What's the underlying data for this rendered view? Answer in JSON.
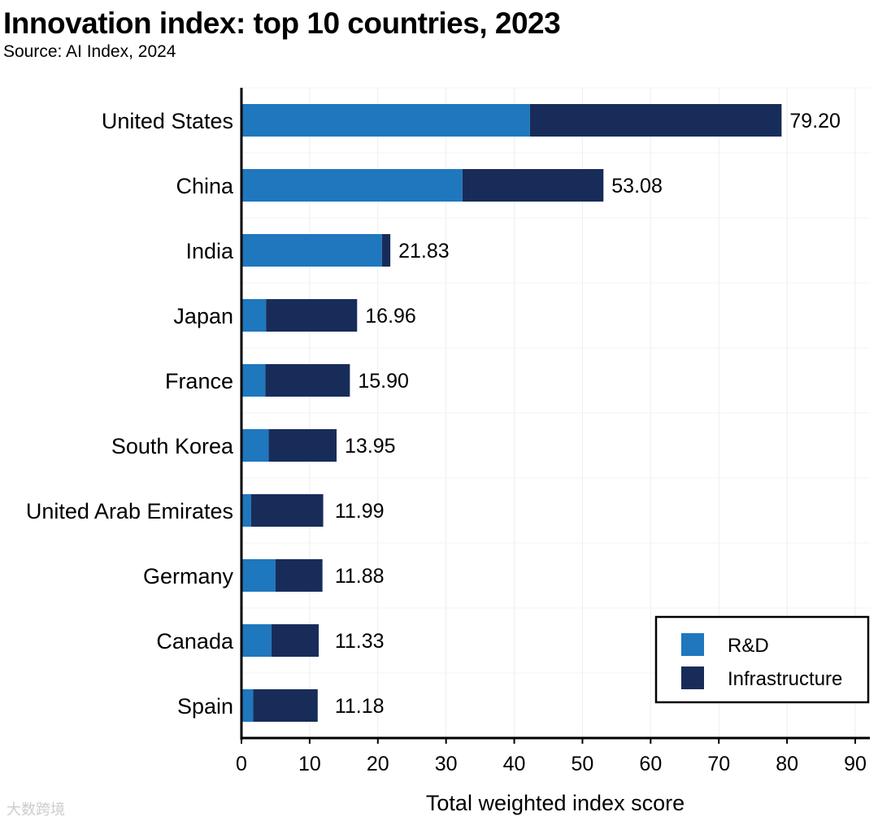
{
  "chart_data": {
    "type": "bar",
    "orientation": "horizontal",
    "stacked": true,
    "title": "Innovation index: top 10 countries, 2023",
    "subtitle": "Source: AI Index, 2024",
    "xlabel": "Total weighted index score",
    "ylabel": "",
    "xlim": [
      0,
      90
    ],
    "xticks": [
      0,
      10,
      20,
      30,
      40,
      50,
      60,
      70,
      80,
      90
    ],
    "grid": true,
    "legend_position": "bottom-right",
    "categories": [
      "United States",
      "China",
      "India",
      "Japan",
      "France",
      "South Korea",
      "United Arab Emirates",
      "Germany",
      "Canada",
      "Spain"
    ],
    "series": [
      {
        "name": "R&D",
        "color": "#1f77be",
        "values": [
          42.3,
          32.4,
          20.6,
          3.6,
          3.5,
          4.0,
          1.4,
          5.0,
          4.4,
          1.7
        ]
      },
      {
        "name": "Infrastructure",
        "color": "#182c5a",
        "values": [
          36.9,
          20.68,
          1.23,
          13.36,
          12.4,
          9.95,
          10.59,
          6.88,
          6.93,
          9.48
        ]
      }
    ],
    "totals": [
      "79.20",
      "53.08",
      "21.83",
      "16.96",
      "15.90",
      "13.95",
      "11.99",
      "11.88",
      "11.33",
      "11.18"
    ]
  },
  "watermark": "大数跨境"
}
